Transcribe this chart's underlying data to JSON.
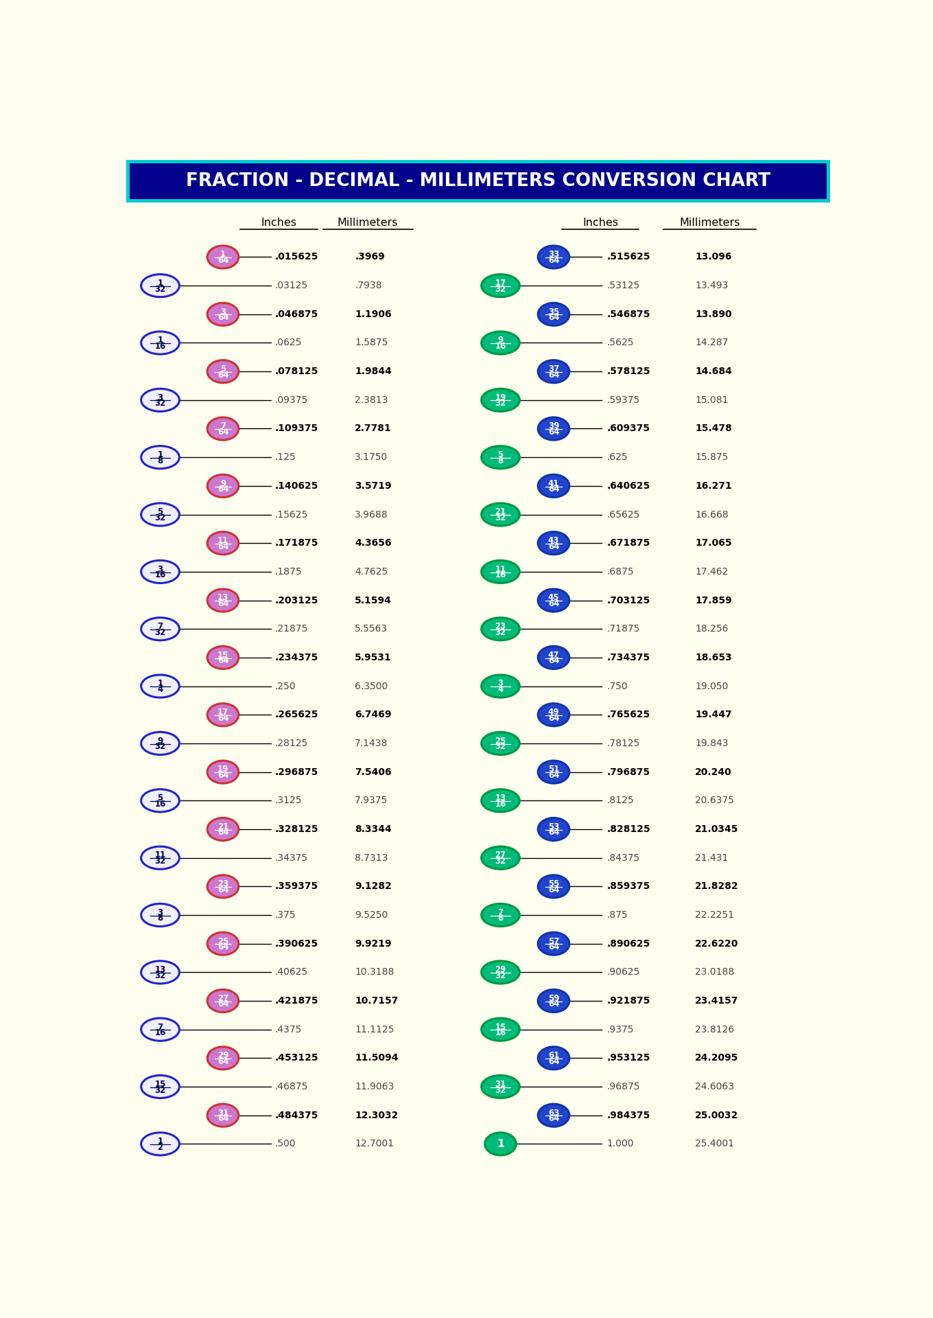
{
  "title": "FRACTION - DECIMAL - MILLIMETERS CONVERSION CHART",
  "title_bg": "#00008B",
  "title_fg": "#FFFFFF",
  "title_border": "#00CCCC",
  "bg_color": "#FFFFF0",
  "left_col_header_inches": "Inches",
  "left_col_header_mm": "Millimeters",
  "right_col_header_inches": "Inches",
  "right_col_header_mm": "Millimeters",
  "left_rows": [
    {
      "frac64": "1/64",
      "frac_simple": "",
      "dec": ".015625",
      "mm": ".3969",
      "is64": true
    },
    {
      "frac64": "",
      "frac_simple": "1/32",
      "dec": ".03125",
      "mm": ".7938",
      "is64": false
    },
    {
      "frac64": "3/64",
      "frac_simple": "",
      "dec": ".046875",
      "mm": "1.1906",
      "is64": true
    },
    {
      "frac64": "",
      "frac_simple": "1/16",
      "dec": ".0625",
      "mm": "1.5875",
      "is64": false
    },
    {
      "frac64": "5/64",
      "frac_simple": "",
      "dec": ".078125",
      "mm": "1.9844",
      "is64": true
    },
    {
      "frac64": "",
      "frac_simple": "3/32",
      "dec": ".09375",
      "mm": "2.3813",
      "is64": false
    },
    {
      "frac64": "7/64",
      "frac_simple": "",
      "dec": ".109375",
      "mm": "2.7781",
      "is64": true
    },
    {
      "frac64": "",
      "frac_simple": "1/8",
      "dec": ".125",
      "mm": "3.1750",
      "is64": false
    },
    {
      "frac64": "9/64",
      "frac_simple": "",
      "dec": ".140625",
      "mm": "3.5719",
      "is64": true
    },
    {
      "frac64": "",
      "frac_simple": "5/32",
      "dec": ".15625",
      "mm": "3.9688",
      "is64": false
    },
    {
      "frac64": "11/64",
      "frac_simple": "",
      "dec": ".171875",
      "mm": "4.3656",
      "is64": true
    },
    {
      "frac64": "",
      "frac_simple": "3/16",
      "dec": ".1875",
      "mm": "4.7625",
      "is64": false
    },
    {
      "frac64": "13/64",
      "frac_simple": "",
      "dec": ".203125",
      "mm": "5.1594",
      "is64": true
    },
    {
      "frac64": "",
      "frac_simple": "7/32",
      "dec": ".21875",
      "mm": "5.5563",
      "is64": false
    },
    {
      "frac64": "15/64",
      "frac_simple": "",
      "dec": ".234375",
      "mm": "5.9531",
      "is64": true
    },
    {
      "frac64": "",
      "frac_simple": "1/4",
      "dec": ".250",
      "mm": "6.3500",
      "is64": false
    },
    {
      "frac64": "17/64",
      "frac_simple": "",
      "dec": ".265625",
      "mm": "6.7469",
      "is64": true
    },
    {
      "frac64": "",
      "frac_simple": "9/32",
      "dec": ".28125",
      "mm": "7.1438",
      "is64": false
    },
    {
      "frac64": "19/64",
      "frac_simple": "",
      "dec": ".296875",
      "mm": "7.5406",
      "is64": true
    },
    {
      "frac64": "",
      "frac_simple": "5/16",
      "dec": ".3125",
      "mm": "7.9375",
      "is64": false
    },
    {
      "frac64": "21/64",
      "frac_simple": "",
      "dec": ".328125",
      "mm": "8.3344",
      "is64": true
    },
    {
      "frac64": "",
      "frac_simple": "11/32",
      "dec": ".34375",
      "mm": "8.7313",
      "is64": false
    },
    {
      "frac64": "23/64",
      "frac_simple": "",
      "dec": ".359375",
      "mm": "9.1282",
      "is64": true
    },
    {
      "frac64": "",
      "frac_simple": "3/8",
      "dec": ".375",
      "mm": "9.5250",
      "is64": false
    },
    {
      "frac64": "25/64",
      "frac_simple": "",
      "dec": ".390625",
      "mm": "9.9219",
      "is64": true
    },
    {
      "frac64": "",
      "frac_simple": "13/32",
      "dec": ".40625",
      "mm": "10.3188",
      "is64": false
    },
    {
      "frac64": "27/64",
      "frac_simple": "",
      "dec": ".421875",
      "mm": "10.7157",
      "is64": true
    },
    {
      "frac64": "",
      "frac_simple": "7/16",
      "dec": ".4375",
      "mm": "11.1125",
      "is64": false
    },
    {
      "frac64": "29/64",
      "frac_simple": "",
      "dec": ".453125",
      "mm": "11.5094",
      "is64": true
    },
    {
      "frac64": "",
      "frac_simple": "15/32",
      "dec": ".46875",
      "mm": "11.9063",
      "is64": false
    },
    {
      "frac64": "31/64",
      "frac_simple": "",
      "dec": ".484375",
      "mm": "12.3032",
      "is64": true
    },
    {
      "frac64": "",
      "frac_simple": "1/2",
      "dec": ".500",
      "mm": "12.7001",
      "is64": false
    }
  ],
  "right_rows": [
    {
      "frac64": "33/64",
      "frac_simple": "",
      "dec": ".515625",
      "mm": "13.096",
      "is64": true
    },
    {
      "frac64": "",
      "frac_simple": "17/32",
      "dec": ".53125",
      "mm": "13.493",
      "is64": false
    },
    {
      "frac64": "35/64",
      "frac_simple": "",
      "dec": ".546875",
      "mm": "13.890",
      "is64": true
    },
    {
      "frac64": "",
      "frac_simple": "9/16",
      "dec": ".5625",
      "mm": "14.287",
      "is64": false
    },
    {
      "frac64": "37/64",
      "frac_simple": "",
      "dec": ".578125",
      "mm": "14.684",
      "is64": true
    },
    {
      "frac64": "",
      "frac_simple": "19/32",
      "dec": ".59375",
      "mm": "15.081",
      "is64": false
    },
    {
      "frac64": "39/64",
      "frac_simple": "",
      "dec": ".609375",
      "mm": "15.478",
      "is64": true
    },
    {
      "frac64": "",
      "frac_simple": "5/8",
      "dec": ".625",
      "mm": "15.875",
      "is64": false
    },
    {
      "frac64": "41/64",
      "frac_simple": "",
      "dec": ".640625",
      "mm": "16.271",
      "is64": true
    },
    {
      "frac64": "",
      "frac_simple": "21/32",
      "dec": ".65625",
      "mm": "16.668",
      "is64": false
    },
    {
      "frac64": "43/64",
      "frac_simple": "",
      "dec": ".671875",
      "mm": "17.065",
      "is64": true
    },
    {
      "frac64": "",
      "frac_simple": "11/16",
      "dec": ".6875",
      "mm": "17.462",
      "is64": false
    },
    {
      "frac64": "45/64",
      "frac_simple": "",
      "dec": ".703125",
      "mm": "17.859",
      "is64": true
    },
    {
      "frac64": "",
      "frac_simple": "23/32",
      "dec": ".71875",
      "mm": "18.256",
      "is64": false
    },
    {
      "frac64": "47/64",
      "frac_simple": "",
      "dec": ".734375",
      "mm": "18.653",
      "is64": true
    },
    {
      "frac64": "",
      "frac_simple": "3/4",
      "dec": ".750",
      "mm": "19.050",
      "is64": false
    },
    {
      "frac64": "49/64",
      "frac_simple": "",
      "dec": ".765625",
      "mm": "19.447",
      "is64": true
    },
    {
      "frac64": "",
      "frac_simple": "25/32",
      "dec": ".78125",
      "mm": "19.843",
      "is64": false
    },
    {
      "frac64": "51/64",
      "frac_simple": "",
      "dec": ".796875",
      "mm": "20.240",
      "is64": true
    },
    {
      "frac64": "",
      "frac_simple": "13/16",
      "dec": ".8125",
      "mm": "20.6375",
      "is64": false
    },
    {
      "frac64": "53/64",
      "frac_simple": "",
      "dec": ".828125",
      "mm": "21.0345",
      "is64": true
    },
    {
      "frac64": "",
      "frac_simple": "27/32",
      "dec": ".84375",
      "mm": "21.431",
      "is64": false
    },
    {
      "frac64": "55/64",
      "frac_simple": "",
      "dec": ".859375",
      "mm": "21.8282",
      "is64": true
    },
    {
      "frac64": "",
      "frac_simple": "7/8",
      "dec": ".875",
      "mm": "22.2251",
      "is64": false
    },
    {
      "frac64": "57/64",
      "frac_simple": "",
      "dec": ".890625",
      "mm": "22.6220",
      "is64": true
    },
    {
      "frac64": "",
      "frac_simple": "29/32",
      "dec": ".90625",
      "mm": "23.0188",
      "is64": false
    },
    {
      "frac64": "59/64",
      "frac_simple": "",
      "dec": ".921875",
      "mm": "23.4157",
      "is64": true
    },
    {
      "frac64": "",
      "frac_simple": "15/16",
      "dec": ".9375",
      "mm": "23.8126",
      "is64": false
    },
    {
      "frac64": "61/64",
      "frac_simple": "",
      "dec": ".953125",
      "mm": "24.2095",
      "is64": true
    },
    {
      "frac64": "",
      "frac_simple": "31/32",
      "dec": ".96875",
      "mm": "24.6063",
      "is64": false
    },
    {
      "frac64": "63/64",
      "frac_simple": "",
      "dec": ".984375",
      "mm": "25.0032",
      "is64": true
    },
    {
      "frac64": "",
      "frac_simple": "1",
      "dec": "1.000",
      "mm": "25.4001",
      "is64": false
    }
  ],
  "color_64_fill": "#CC77CC",
  "color_64_border": "#CC3333",
  "color_simple_fill": "#F0F0FF",
  "color_simple_border": "#2222CC",
  "color_simple_text": "#000044",
  "color_64_text": "#FFFFFF",
  "right_64_fill": "#2244CC",
  "right_64_border": "#1133AA",
  "right_simple_fill": "#00BB77",
  "right_simple_border": "#009944"
}
